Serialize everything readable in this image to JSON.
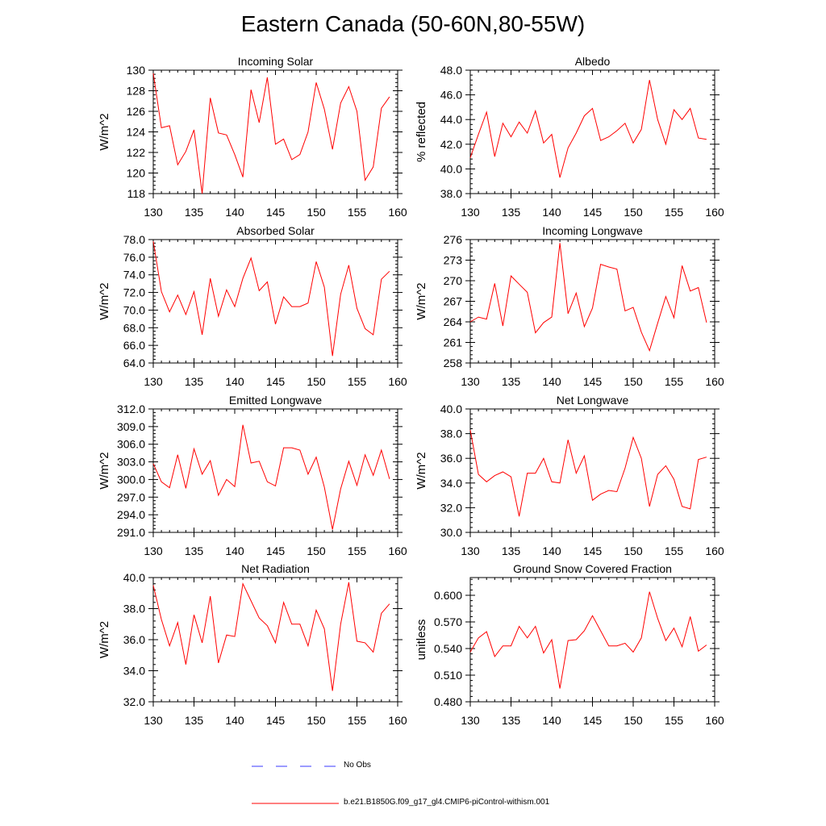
{
  "title": "Eastern Canada (50-60N,80-55W)",
  "legend": {
    "obs_label": "No Obs",
    "obs_color": "#3a3aff",
    "model_label": "b.e21.B1850G.f09_g17_gl4.CMIP6-piControl-withism.001",
    "model_color": "#ff0000"
  },
  "chart_data": [
    {
      "type": "line",
      "title": "Incoming Solar",
      "ylabel": "W/m^2",
      "xlim": [
        130,
        160
      ],
      "ylim": [
        118,
        130
      ],
      "xticks": [
        130,
        135,
        140,
        145,
        150,
        155,
        160
      ],
      "yticks": [
        "118",
        "120",
        "122",
        "124",
        "126",
        "128",
        "130"
      ],
      "x": [
        130,
        131,
        132,
        133,
        134,
        135,
        136,
        137,
        138,
        139,
        140,
        141,
        142,
        143,
        144,
        145,
        146,
        147,
        148,
        149,
        150,
        151,
        152,
        153,
        154,
        155,
        156,
        157,
        158,
        159
      ],
      "series": [
        {
          "values": [
            129.7,
            124.4,
            124.6,
            120.8,
            122.1,
            124.2,
            118.0,
            127.3,
            123.9,
            123.7,
            121.8,
            119.6,
            128.1,
            124.9,
            129.3,
            122.8,
            123.3,
            121.3,
            121.8,
            124.0,
            128.8,
            126.2,
            122.3,
            126.8,
            128.4,
            126.0,
            119.3,
            120.6,
            126.3,
            127.4
          ]
        }
      ]
    },
    {
      "type": "line",
      "title": "Albedo",
      "ylabel": "% reflected",
      "xlim": [
        130,
        160
      ],
      "ylim": [
        38,
        48
      ],
      "xticks": [
        130,
        135,
        140,
        145,
        150,
        155,
        160
      ],
      "yticks": [
        "38.0",
        "40.0",
        "42.0",
        "44.0",
        "46.0",
        "48.0"
      ],
      "x": [
        130,
        131,
        132,
        133,
        134,
        135,
        136,
        137,
        138,
        139,
        140,
        141,
        142,
        143,
        144,
        145,
        146,
        147,
        148,
        149,
        150,
        151,
        152,
        153,
        154,
        155,
        156,
        157,
        158,
        159
      ],
      "series": [
        {
          "values": [
            40.9,
            42.8,
            44.6,
            41.0,
            43.7,
            42.6,
            43.8,
            42.9,
            44.7,
            42.1,
            42.8,
            39.3,
            41.7,
            42.9,
            44.3,
            44.9,
            42.3,
            42.6,
            43.1,
            43.7,
            42.1,
            43.2,
            47.2,
            44.0,
            42.0,
            44.8,
            44.0,
            44.9,
            42.5,
            42.4
          ]
        }
      ]
    },
    {
      "type": "line",
      "title": "Absorbed Solar",
      "ylabel": "W/m^2",
      "xlim": [
        130,
        160
      ],
      "ylim": [
        64,
        78
      ],
      "xticks": [
        130,
        135,
        140,
        145,
        150,
        155,
        160
      ],
      "yticks": [
        "64.0",
        "66.0",
        "68.0",
        "70.0",
        "72.0",
        "74.0",
        "76.0",
        "78.0"
      ],
      "x": [
        130,
        131,
        132,
        133,
        134,
        135,
        136,
        137,
        138,
        139,
        140,
        141,
        142,
        143,
        144,
        145,
        146,
        147,
        148,
        149,
        150,
        151,
        152,
        153,
        154,
        155,
        156,
        157,
        158,
        159
      ],
      "series": [
        {
          "values": [
            77.8,
            72.1,
            69.8,
            71.7,
            69.5,
            72.1,
            67.2,
            73.6,
            69.3,
            72.3,
            70.4,
            73.6,
            75.9,
            72.2,
            73.2,
            68.4,
            71.5,
            70.4,
            70.4,
            70.8,
            75.5,
            72.6,
            64.8,
            71.8,
            75.1,
            70.2,
            67.9,
            67.2,
            73.5,
            74.4
          ]
        }
      ]
    },
    {
      "type": "line",
      "title": "Incoming Longwave",
      "ylabel": "W/m^2",
      "xlim": [
        130,
        160
      ],
      "ylim": [
        258,
        276
      ],
      "xticks": [
        130,
        135,
        140,
        145,
        150,
        155,
        160
      ],
      "yticks": [
        "258",
        "261",
        "264",
        "267",
        "270",
        "273",
        "276"
      ],
      "x": [
        130,
        131,
        132,
        133,
        134,
        135,
        136,
        137,
        138,
        139,
        140,
        141,
        142,
        143,
        144,
        145,
        146,
        147,
        148,
        149,
        150,
        151,
        152,
        153,
        154,
        155,
        156,
        157,
        158,
        159
      ],
      "series": [
        {
          "values": [
            264.0,
            264.7,
            264.4,
            269.6,
            263.4,
            270.7,
            269.5,
            268.3,
            262.4,
            263.9,
            264.7,
            275.5,
            265.2,
            268.2,
            263.3,
            266.0,
            272.4,
            272.0,
            271.7,
            265.6,
            266.1,
            262.5,
            259.8,
            263.8,
            267.7,
            264.6,
            272.2,
            268.5,
            269.0,
            263.9
          ]
        }
      ]
    },
    {
      "type": "line",
      "title": "Emitted Longwave",
      "ylabel": "W/m^2",
      "xlim": [
        130,
        160
      ],
      "ylim": [
        291,
        312
      ],
      "xticks": [
        130,
        135,
        140,
        145,
        150,
        155,
        160
      ],
      "yticks": [
        "291.0",
        "294.0",
        "297.0",
        "300.0",
        "303.0",
        "306.0",
        "309.0",
        "312.0"
      ],
      "x": [
        130,
        131,
        132,
        133,
        134,
        135,
        136,
        137,
        138,
        139,
        140,
        141,
        142,
        143,
        144,
        145,
        146,
        147,
        148,
        149,
        150,
        151,
        152,
        153,
        154,
        155,
        156,
        157,
        158,
        159
      ],
      "series": [
        {
          "values": [
            302.7,
            299.6,
            298.6,
            304.2,
            298.5,
            305.2,
            300.9,
            303.2,
            297.3,
            300.0,
            298.8,
            309.3,
            302.8,
            303.1,
            299.6,
            298.9,
            305.4,
            305.4,
            305.0,
            300.9,
            303.8,
            298.7,
            291.5,
            298.4,
            303.1,
            299.0,
            304.2,
            300.7,
            305.0,
            300.1
          ]
        }
      ]
    },
    {
      "type": "line",
      "title": "Net Longwave",
      "ylabel": "W/m^2",
      "xlim": [
        130,
        160
      ],
      "ylim": [
        30,
        40
      ],
      "xticks": [
        130,
        135,
        140,
        145,
        150,
        155,
        160
      ],
      "yticks": [
        "30.0",
        "32.0",
        "34.0",
        "36.0",
        "38.0",
        "40.0"
      ],
      "x": [
        130,
        131,
        132,
        133,
        134,
        135,
        136,
        137,
        138,
        139,
        140,
        141,
        142,
        143,
        144,
        145,
        146,
        147,
        148,
        149,
        150,
        151,
        152,
        153,
        154,
        155,
        156,
        157,
        158,
        159
      ],
      "series": [
        {
          "values": [
            38.3,
            34.7,
            34.1,
            34.6,
            34.9,
            34.5,
            31.3,
            34.8,
            34.8,
            36.0,
            34.1,
            34.0,
            37.5,
            34.8,
            36.2,
            32.6,
            33.1,
            33.4,
            33.3,
            35.2,
            37.7,
            36.0,
            32.1,
            34.7,
            35.4,
            34.3,
            32.1,
            31.9,
            35.9,
            36.1
          ]
        }
      ]
    },
    {
      "type": "line",
      "title": "Net Radiation",
      "ylabel": "W/m^2",
      "xlim": [
        130,
        160
      ],
      "ylim": [
        32,
        40
      ],
      "xticks": [
        130,
        135,
        140,
        145,
        150,
        155,
        160
      ],
      "yticks": [
        "32.0",
        "34.0",
        "36.0",
        "38.0",
        "40.0"
      ],
      "x": [
        130,
        131,
        132,
        133,
        134,
        135,
        136,
        137,
        138,
        139,
        140,
        141,
        142,
        143,
        144,
        145,
        146,
        147,
        148,
        149,
        150,
        151,
        152,
        153,
        154,
        155,
        156,
        157,
        158,
        159
      ],
      "series": [
        {
          "values": [
            39.5,
            37.3,
            35.6,
            37.1,
            34.4,
            37.6,
            35.8,
            38.8,
            34.5,
            36.3,
            36.2,
            39.6,
            38.5,
            37.4,
            36.9,
            35.8,
            38.4,
            37.0,
            37.0,
            35.6,
            37.9,
            36.7,
            32.7,
            37.0,
            39.7,
            35.9,
            35.8,
            35.2,
            37.7,
            38.3
          ]
        }
      ]
    },
    {
      "type": "line",
      "title": "Ground Snow Covered Fraction",
      "ylabel": "unitless",
      "xlim": [
        130,
        160
      ],
      "ylim": [
        0.48,
        0.62
      ],
      "xticks": [
        130,
        135,
        140,
        145,
        150,
        155,
        160
      ],
      "yticks": [
        "0.480",
        "0.510",
        "0.540",
        "0.570",
        "0.600"
      ],
      "x": [
        130,
        131,
        132,
        133,
        134,
        135,
        136,
        137,
        138,
        139,
        140,
        141,
        142,
        143,
        144,
        145,
        146,
        147,
        148,
        149,
        150,
        151,
        152,
        153,
        154,
        155,
        156,
        157,
        158,
        159
      ],
      "series": [
        {
          "values": [
            0.536,
            0.552,
            0.559,
            0.531,
            0.543,
            0.543,
            0.565,
            0.552,
            0.565,
            0.535,
            0.55,
            0.495,
            0.549,
            0.55,
            0.56,
            0.577,
            0.56,
            0.543,
            0.543,
            0.546,
            0.536,
            0.552,
            0.604,
            0.574,
            0.549,
            0.563,
            0.542,
            0.576,
            0.537,
            0.544
          ]
        }
      ]
    }
  ]
}
